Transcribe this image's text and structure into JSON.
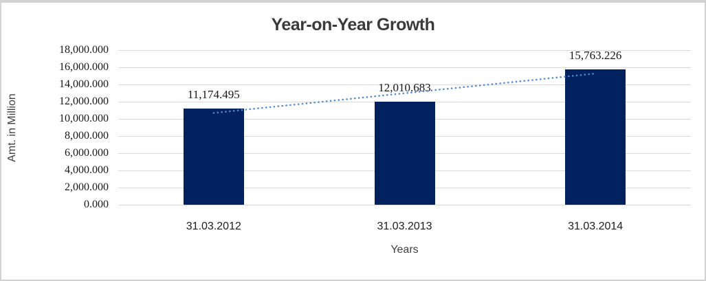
{
  "chart": {
    "title": "Year-on-Year Growth",
    "y_axis_title": "Amt. in Million",
    "x_axis_title": "Years"
  },
  "chart_data": {
    "type": "bar",
    "title": "Year-on-Year Growth",
    "xlabel": "Years",
    "ylabel": "Amt. in Million",
    "categories": [
      "31.03.2012",
      "31.03.2013",
      "31.03.2014"
    ],
    "values": [
      11174.495,
      12010.683,
      15763.226
    ],
    "data_labels": [
      "11,174.495",
      "12,010.683",
      "15,763.226"
    ],
    "ylim": [
      0,
      18000
    ],
    "y_tick_step": 2000,
    "y_tick_labels": [
      "18,000.000",
      "16,000.000",
      "14,000.000",
      "12,000.000",
      "10,000.000",
      "8,000.000",
      "6,000.000",
      "4,000.000",
      "2,000.000",
      "0.000"
    ],
    "grid": true,
    "legend": false,
    "trendline": {
      "type": "linear",
      "style": "dotted",
      "color": "#4e8bd3"
    },
    "bar_color": "#02215f",
    "gridline_color": "#d9d9d9",
    "frame_color": "#d2d2d2",
    "title_color": "#3a3a3a"
  }
}
